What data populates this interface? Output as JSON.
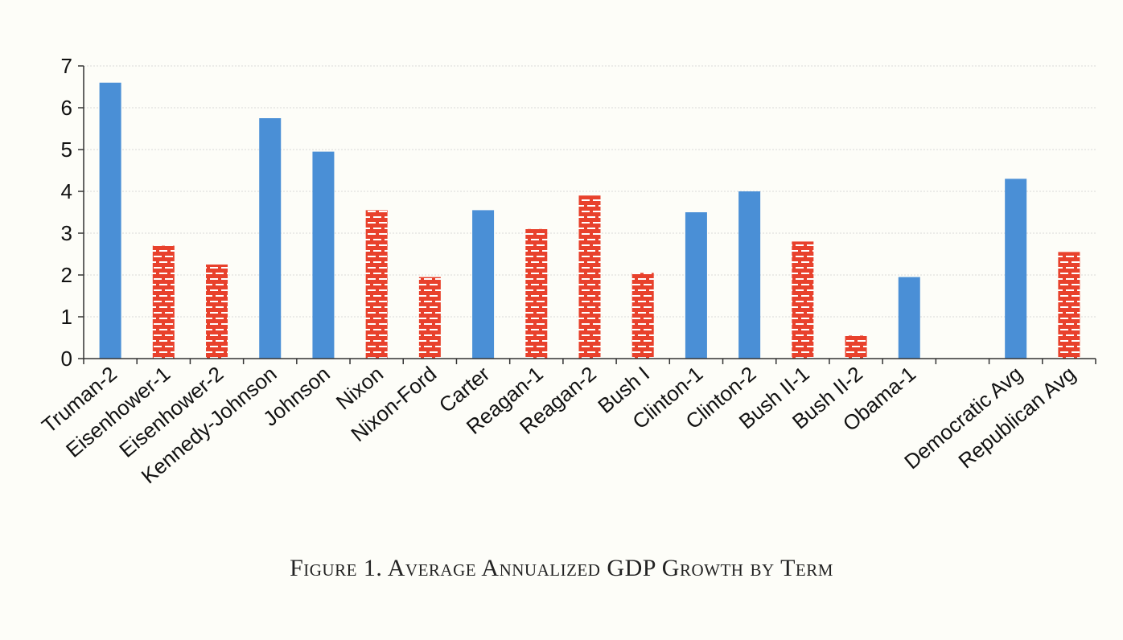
{
  "caption": "Figure 1. Average Annualized GDP Growth by Term",
  "colors": {
    "democratic": "#4a8fd6",
    "republican": "#e8412c",
    "axis": "#333333",
    "grid": "#d9d9d9"
  },
  "chart_data": {
    "type": "bar",
    "title": "",
    "xlabel": "",
    "ylabel": "",
    "ylim": [
      0,
      7
    ],
    "yticks": [
      "0",
      "1",
      "2",
      "3",
      "4",
      "5",
      "6",
      "7"
    ],
    "grid": true,
    "legend": "none",
    "categories": [
      "Truman-2",
      "Eisenhower-1",
      "Eisenhower-2",
      "Kennedy-Johnson",
      "Johnson",
      "Nixon",
      "Nixon-Ford",
      "Carter",
      "Reagan-1",
      "Reagan-2",
      "Bush I",
      "Clinton-1",
      "Clinton-2",
      "Bush II-1",
      "Bush II-2",
      "Obama-1",
      "",
      "Democratic Avg",
      "Republican Avg"
    ],
    "values": [
      6.6,
      2.7,
      2.25,
      5.75,
      4.95,
      3.55,
      1.95,
      3.55,
      3.1,
      3.9,
      2.05,
      3.5,
      4.0,
      2.8,
      0.55,
      1.95,
      null,
      4.3,
      2.55
    ],
    "party": [
      "D",
      "R",
      "R",
      "D",
      "D",
      "R",
      "R",
      "D",
      "R",
      "R",
      "R",
      "D",
      "D",
      "R",
      "R",
      "D",
      "",
      "D",
      "R"
    ]
  }
}
